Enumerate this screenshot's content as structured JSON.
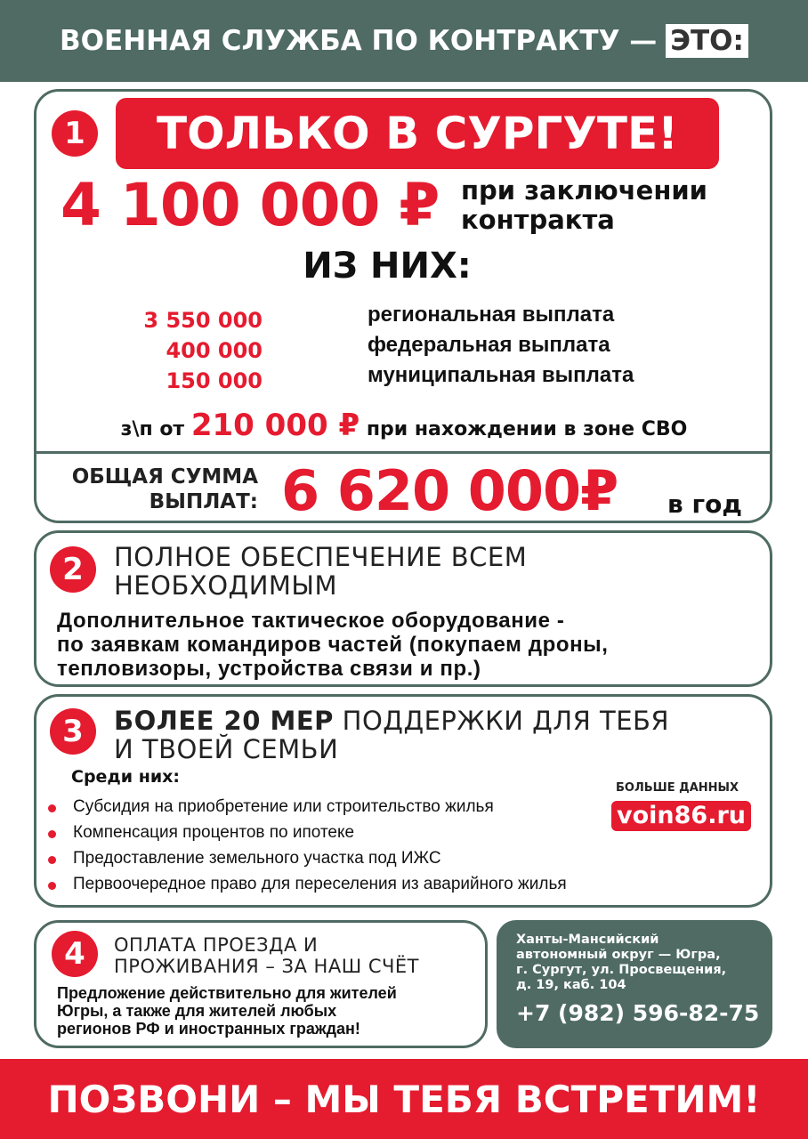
{
  "colors": {
    "accent": "#e51b2f",
    "brand": "#4f6b63"
  },
  "header": {
    "title": "ВОЕННАЯ СЛУЖБА ПО КОНТРАКТУ —",
    "highlight": "ЭТО:"
  },
  "block1": {
    "number": "1",
    "banner": "ТОЛЬКО В СУРГУТЕ!",
    "amount": "4 100 000 ₽",
    "amount_note_1": "при заключении",
    "amount_note_2": "контракта",
    "of_them": "ИЗ НИХ:",
    "payments": [
      {
        "amount": "3 550 000",
        "label": "региональная выплата"
      },
      {
        "amount": "400 000",
        "label": "федеральная выплата"
      },
      {
        "amount": "150 000",
        "label": "муниципальная выплата"
      }
    ],
    "salary_prefix": "з\\п от",
    "salary": "210 000 ₽",
    "salary_suffix": "при нахождении в зоне СВО",
    "total_label_1": "ОБЩАЯ СУММА",
    "total_label_2": "ВЫПЛАТ:",
    "total": "6 620 000₽",
    "total_suffix": "в год"
  },
  "block2": {
    "number": "2",
    "title_1": "ПОЛНОЕ ОБЕСПЕЧЕНИЕ ВСЕМ",
    "title_2": "НЕОБХОДИМЫМ",
    "text_1": "Дополнительное тактическое оборудование -",
    "text_2": "по заявкам командиров частей (покупаем дроны,",
    "text_3": "тепловизоры, устройства связи и пр.)"
  },
  "block3": {
    "number": "3",
    "title_bold": "БОЛЕЕ 20 МЕР",
    "title_rest": "ПОДДЕРЖКИ ДЛЯ ТЕБЯ",
    "title_2": "И ТВОЕЙ СЕМЬИ",
    "among": "Среди них:",
    "items": [
      "Субсидия на приобретение или строительство жилья",
      "Компенсация процентов по ипотеке",
      "Предоставление земельного участка под ИЖС",
      "Первоочередное право для переселения из аварийного жилья"
    ],
    "more_label": "БОЛЬШЕ ДАННЫХ",
    "site": "voin86.ru"
  },
  "block4": {
    "number": "4",
    "title_1": "ОПЛАТА ПРОЕЗДА И",
    "title_2": "ПРОЖИВАНИЯ – ЗА НАШ СЧЁТ",
    "text_1": "Предложение действительно для жителей",
    "text_2": "Югры, а также для жителей любых",
    "text_3": "регионов РФ и иностранных граждан!"
  },
  "contact": {
    "address_1": "Ханты-Мансийский",
    "address_2": "автономный округ — Югра,",
    "address_3": "г. Сургут, ул. Просвещения,",
    "address_4": "д. 19, каб. 104",
    "phone": "+7 (982) 596-82-75"
  },
  "footer": {
    "text": "ПОЗВОНИ – МЫ ТЕБЯ ВСТРЕТИМ!"
  }
}
